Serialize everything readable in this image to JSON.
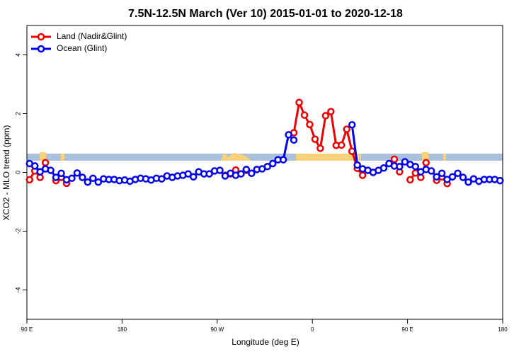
{
  "chart_data": {
    "type": "line",
    "title": "7.5N-12.5N March (Ver 10)   2015-01-01 to 2020-12-18",
    "xlabel": "Longitude (deg E)",
    "ylabel": "XCO2 - MLO trend (ppm)",
    "xlim": [
      90,
      540
    ],
    "xticks": [
      {
        "value": 90,
        "label": "90 E"
      },
      {
        "value": 180,
        "label": "180"
      },
      {
        "value": 270,
        "label": "90 W"
      },
      {
        "value": 360,
        "label": "0"
      },
      {
        "value": 450,
        "label": "90 E"
      },
      {
        "value": 540,
        "label": "180"
      }
    ],
    "ylim": [
      -5,
      5
    ],
    "yticks": [
      -4,
      -2,
      0,
      2,
      4
    ],
    "legend": "top-left",
    "x": [
      92.5,
      97.5,
      102.5,
      107.5,
      112.5,
      117.5,
      122.5,
      127.5,
      132.5,
      137.5,
      142.5,
      147.5,
      152.5,
      157.5,
      162.5,
      167.5,
      172.5,
      177.5,
      182.5,
      187.5,
      192.5,
      197.5,
      202.5,
      207.5,
      212.5,
      217.5,
      222.5,
      227.5,
      232.5,
      237.5,
      242.5,
      247.5,
      252.5,
      257.5,
      262.5,
      267.5,
      272.5,
      277.5,
      282.5,
      287.5,
      292.5,
      297.5,
      302.5,
      307.5,
      312.5,
      317.5,
      322.5,
      327.5,
      332.5,
      337.5,
      342.5,
      347.5,
      352.5,
      357.5,
      362.5,
      367.5,
      372.5,
      377.5,
      382.5,
      387.5,
      392.5,
      397.5,
      402.5,
      407.5,
      412.5,
      417.5,
      422.5,
      427.5,
      432.5,
      437.5,
      442.5,
      447.5,
      452.5,
      457.5,
      462.5,
      467.5,
      472.5,
      477.5,
      482.5,
      487.5,
      492.5,
      497.5,
      502.5,
      507.5,
      512.5,
      517.5,
      522.5,
      527.5,
      532.5,
      537.5
    ],
    "series": [
      {
        "name": "Land (Nadir&Glint)",
        "color": "#ee0000",
        "values": [
          -0.25,
          0.05,
          -0.17,
          0.33,
          null,
          -0.28,
          -0.17,
          -0.37,
          null,
          null,
          null,
          null,
          null,
          null,
          null,
          null,
          null,
          null,
          null,
          null,
          null,
          null,
          null,
          null,
          null,
          null,
          null,
          null,
          null,
          null,
          null,
          null,
          null,
          null,
          null,
          null,
          null,
          -0.1,
          -0.05,
          0.08,
          null,
          0.07,
          null,
          null,
          null,
          null,
          null,
          null,
          null,
          null,
          1.35,
          2.38,
          1.95,
          1.63,
          1.13,
          0.82,
          1.93,
          2.07,
          0.92,
          0.93,
          1.47,
          0.72,
          0.14,
          -0.1,
          null,
          null,
          null,
          null,
          null,
          0.45,
          0.02,
          null,
          -0.25,
          -0.02,
          -0.17,
          0.33,
          null,
          -0.27,
          -0.15,
          -0.38,
          null,
          null,
          null,
          null,
          null,
          null,
          null,
          null,
          null,
          null
        ]
      },
      {
        "name": "Ocean (Glint)",
        "color": "#0000ee",
        "values": [
          0.3,
          0.22,
          0.02,
          0.12,
          0.07,
          -0.17,
          -0.03,
          -0.25,
          -0.2,
          -0.02,
          -0.17,
          -0.33,
          -0.2,
          -0.33,
          -0.22,
          -0.24,
          -0.24,
          -0.28,
          -0.26,
          -0.3,
          -0.24,
          -0.2,
          -0.22,
          -0.26,
          -0.2,
          -0.22,
          -0.12,
          -0.17,
          -0.12,
          -0.1,
          -0.05,
          -0.15,
          0.02,
          -0.05,
          -0.05,
          0.05,
          0.07,
          -0.12,
          -0.03,
          -0.1,
          -0.05,
          0.1,
          -0.03,
          0.1,
          0.12,
          0.2,
          0.3,
          0.43,
          0.43,
          1.28,
          1.1,
          null,
          null,
          null,
          null,
          null,
          null,
          null,
          null,
          null,
          null,
          1.62,
          0.25,
          0.12,
          0.07,
          0,
          0.07,
          0.15,
          0.3,
          0.22,
          0.2,
          0.36,
          0.27,
          0.2,
          0.02,
          0.1,
          0.05,
          -0.15,
          -0.03,
          -0.24,
          -0.15,
          -0.03,
          -0.17,
          -0.33,
          -0.22,
          -0.3,
          -0.24,
          -0.24,
          -0.24,
          -0.28
        ]
      }
    ]
  }
}
